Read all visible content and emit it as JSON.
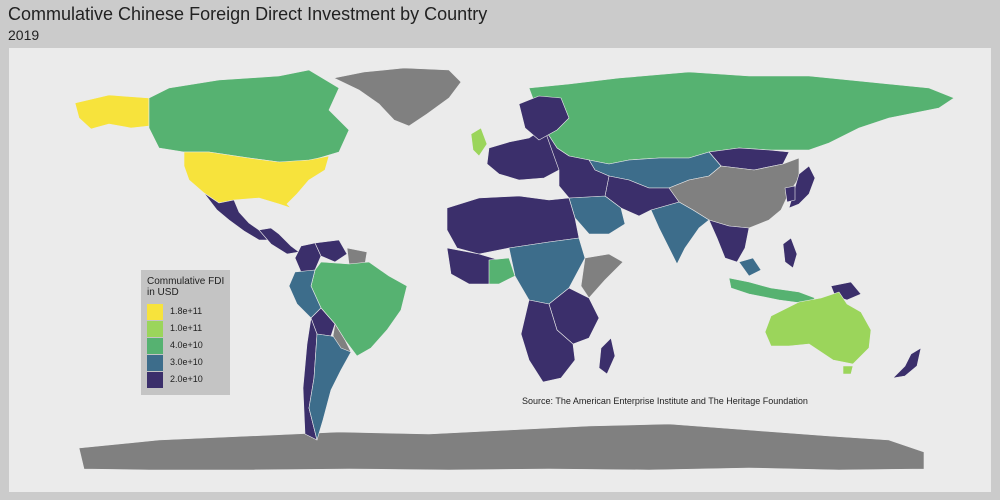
{
  "title": "Commulative Chinese Foreign Direct Investment by Country",
  "subtitle": "2019",
  "source": "Source: The American Enterprise Institute and The Heritage Foundation",
  "colors": {
    "no_data": "#808080",
    "background": "#cbcbcb",
    "panel": "#ebebeb"
  },
  "legend": {
    "title_line1": "Commulative FDI",
    "title_line2": "in USD",
    "items": [
      {
        "label": "1.8e+11",
        "color": "#f7e33c"
      },
      {
        "label": "1.0e+11",
        "color": "#9bd55b"
      },
      {
        "label": "4.0e+10",
        "color": "#56b271"
      },
      {
        "label": "3.0e+10",
        "color": "#3d6d8b"
      },
      {
        "label": "2.0e+10",
        "color": "#3b2f6b"
      }
    ]
  },
  "chart_data": {
    "type": "choropleth",
    "variable": "Commulative FDI in USD",
    "year": "2019",
    "regions": [
      {
        "name": "United States",
        "tier": "1.8e+11"
      },
      {
        "name": "Alaska (US)",
        "tier": "1.8e+11"
      },
      {
        "name": "Australia",
        "tier": "1.0e+11"
      },
      {
        "name": "United Kingdom",
        "tier": "1.0e+11"
      },
      {
        "name": "Canada",
        "tier": "4.0e+10"
      },
      {
        "name": "Brazil",
        "tier": "4.0e+10"
      },
      {
        "name": "Russia",
        "tier": "4.0e+10"
      },
      {
        "name": "Indonesia",
        "tier": "4.0e+10"
      },
      {
        "name": "Nigeria",
        "tier": "4.0e+10"
      },
      {
        "name": "Peru",
        "tier": "3.0e+10"
      },
      {
        "name": "Argentina",
        "tier": "3.0e+10"
      },
      {
        "name": "Kazakhstan",
        "tier": "3.0e+10"
      },
      {
        "name": "Saudi Arabia",
        "tier": "3.0e+10"
      },
      {
        "name": "India",
        "tier": "3.0e+10"
      },
      {
        "name": "Malaysia",
        "tier": "3.0e+10"
      },
      {
        "name": "Germany",
        "tier": "3.0e+10"
      },
      {
        "name": "Mexico",
        "tier": "2.0e+10"
      },
      {
        "name": "Colombia",
        "tier": "2.0e+10"
      },
      {
        "name": "Venezuela",
        "tier": "2.0e+10"
      },
      {
        "name": "Chile",
        "tier": "2.0e+10"
      },
      {
        "name": "Algeria",
        "tier": "2.0e+10"
      },
      {
        "name": "Egypt",
        "tier": "2.0e+10"
      },
      {
        "name": "Ethiopia",
        "tier": "2.0e+10"
      },
      {
        "name": "South Africa",
        "tier": "2.0e+10"
      },
      {
        "name": "Iran",
        "tier": "2.0e+10"
      },
      {
        "name": "Pakistan",
        "tier": "2.0e+10"
      },
      {
        "name": "Japan",
        "tier": "2.0e+10"
      },
      {
        "name": "Philippines",
        "tier": "2.0e+10"
      },
      {
        "name": "New Zealand",
        "tier": "2.0e+10"
      },
      {
        "name": "Mongolia",
        "tier": "2.0e+10"
      },
      {
        "name": "Sweden",
        "tier": "2.0e+10"
      },
      {
        "name": "France",
        "tier": "2.0e+10"
      },
      {
        "name": "Madagascar",
        "tier": "2.0e+10"
      },
      {
        "name": "Papua New Guinea",
        "tier": "2.0e+10"
      },
      {
        "name": "China",
        "tier": "no data"
      },
      {
        "name": "Greenland",
        "tier": "no data"
      },
      {
        "name": "Antarctica",
        "tier": "no data"
      },
      {
        "name": "Somalia",
        "tier": "no data"
      },
      {
        "name": "Guyana / Suriname",
        "tier": "no data"
      }
    ]
  }
}
